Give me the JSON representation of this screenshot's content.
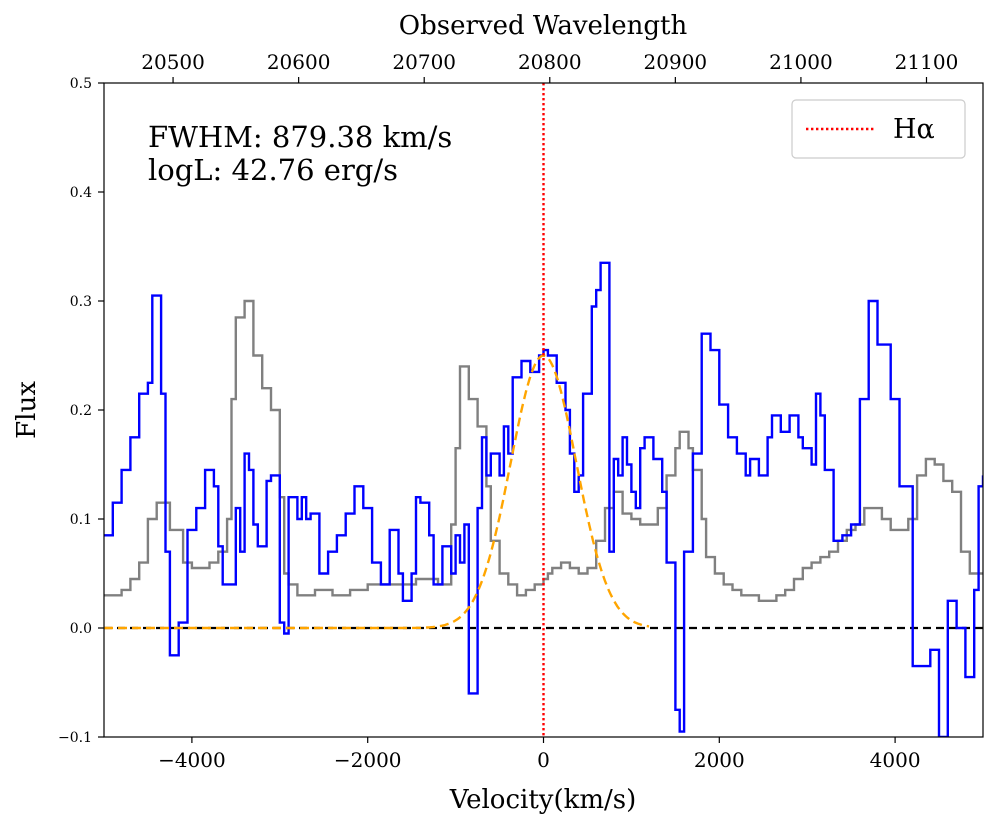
{
  "chart_data": {
    "type": "line",
    "xlabel": "Velocity(km/s)",
    "ylabel": "Flux",
    "top_xlabel": "Observed Wavelength",
    "xlim": [
      -5000,
      5000
    ],
    "ylim": [
      -0.1,
      0.5
    ],
    "top_xlim": [
      20445,
      21145
    ],
    "x_ticks": [
      -4000,
      -2000,
      0,
      2000,
      4000
    ],
    "x_tick_labels": [
      "−4000",
      "−2000",
      "0",
      "2000",
      "4000"
    ],
    "top_ticks": [
      20500,
      20600,
      20700,
      20800,
      20900,
      21000,
      21100
    ],
    "top_tick_labels": [
      "20500",
      "20600",
      "20700",
      "20800",
      "20900",
      "21000",
      "21100"
    ],
    "y_ticks": [
      -0.1,
      0.0,
      0.1,
      0.2,
      0.3,
      0.4,
      0.5
    ],
    "y_tick_labels": [
      "−0.1",
      "0.0",
      "0.1",
      "0.2",
      "0.3",
      "0.4",
      "0.5"
    ],
    "annotations": [
      "FWHM: 879.38 km/s",
      "logL: 42.76 erg/s"
    ],
    "legend": {
      "placement": "top-right",
      "entries": [
        {
          "label": "Hα",
          "style": "red dotted"
        }
      ]
    },
    "colors": {
      "flux": "#0000ff",
      "error": "#808080",
      "fit": "#ffa500",
      "line_marker": "#ff0000",
      "baseline": "#000000"
    },
    "vline": {
      "x": 0,
      "name": "Hα"
    },
    "hline": {
      "y": 0
    },
    "gaussian": {
      "amplitude": 0.25,
      "center": 0,
      "fwhm": 879.38,
      "x_range": [
        -5000,
        1200
      ]
    },
    "series": [
      {
        "name": "flux",
        "style": "steps",
        "points": [
          [
            -5000,
            0.085
          ],
          [
            -4900,
            0.115
          ],
          [
            -4800,
            0.145
          ],
          [
            -4700,
            0.175
          ],
          [
            -4600,
            0.215
          ],
          [
            -4500,
            0.225
          ],
          [
            -4450,
            0.305
          ],
          [
            -4350,
            0.215
          ],
          [
            -4300,
            0.07
          ],
          [
            -4250,
            -0.025
          ],
          [
            -4150,
            0.005
          ],
          [
            -4050,
            0.09
          ],
          [
            -3950,
            0.11
          ],
          [
            -3850,
            0.145
          ],
          [
            -3750,
            0.13
          ],
          [
            -3700,
            0.075
          ],
          [
            -3650,
            0.04
          ],
          [
            -3550,
            0.04
          ],
          [
            -3500,
            0.11
          ],
          [
            -3450,
            0.07
          ],
          [
            -3400,
            0.16
          ],
          [
            -3350,
            0.145
          ],
          [
            -3300,
            0.095
          ],
          [
            -3250,
            0.075
          ],
          [
            -3200,
            0.075
          ],
          [
            -3150,
            0.135
          ],
          [
            -3100,
            0.14
          ],
          [
            -3000,
            0.005
          ],
          [
            -2950,
            -0.005
          ],
          [
            -2900,
            0.12
          ],
          [
            -2800,
            0.1
          ],
          [
            -2750,
            0.12
          ],
          [
            -2700,
            0.1
          ],
          [
            -2650,
            0.105
          ],
          [
            -2550,
            0.05
          ],
          [
            -2450,
            0.07
          ],
          [
            -2350,
            0.085
          ],
          [
            -2250,
            0.105
          ],
          [
            -2150,
            0.13
          ],
          [
            -2050,
            0.11
          ],
          [
            -1950,
            0.06
          ],
          [
            -1850,
            0.04
          ],
          [
            -1750,
            0.09
          ],
          [
            -1650,
            0.05
          ],
          [
            -1600,
            0.025
          ],
          [
            -1500,
            0.05
          ],
          [
            -1450,
            0.12
          ],
          [
            -1400,
            0.115
          ],
          [
            -1300,
            0.085
          ],
          [
            -1250,
            0.04
          ],
          [
            -1150,
            0.075
          ],
          [
            -1050,
            0.05
          ],
          [
            -1000,
            0.085
          ],
          [
            -950,
            0.06
          ],
          [
            -900,
            0.095
          ],
          [
            -850,
            0.005
          ],
          [
            -850,
            -0.06
          ],
          [
            -750,
            0.11
          ],
          [
            -700,
            0.175
          ],
          [
            -650,
            0.14
          ],
          [
            -600,
            0.16
          ],
          [
            -500,
            0.14
          ],
          [
            -450,
            0.185
          ],
          [
            -400,
            0.16
          ],
          [
            -350,
            0.23
          ],
          [
            -250,
            0.245
          ],
          [
            -150,
            0.235
          ],
          [
            -50,
            0.25
          ],
          [
            0,
            0.255
          ],
          [
            50,
            0.25
          ],
          [
            150,
            0.225
          ],
          [
            250,
            0.2
          ],
          [
            300,
            0.16
          ],
          [
            350,
            0.125
          ],
          [
            400,
            0.14
          ],
          [
            450,
            0.215
          ],
          [
            550,
            0.295
          ],
          [
            600,
            0.31
          ],
          [
            650,
            0.335
          ],
          [
            750,
            0.07
          ],
          [
            800,
            0.155
          ],
          [
            850,
            0.14
          ],
          [
            900,
            0.175
          ],
          [
            950,
            0.15
          ],
          [
            1000,
            0.125
          ],
          [
            1050,
            0.11
          ],
          [
            1100,
            0.165
          ],
          [
            1150,
            0.175
          ],
          [
            1250,
            0.155
          ],
          [
            1350,
            0.125
          ],
          [
            1400,
            0.06
          ],
          [
            1500,
            -0.075
          ],
          [
            1550,
            -0.095
          ],
          [
            1600,
            0.07
          ],
          [
            1700,
            0.16
          ],
          [
            1800,
            0.27
          ],
          [
            1900,
            0.255
          ],
          [
            2000,
            0.205
          ],
          [
            2100,
            0.175
          ],
          [
            2200,
            0.16
          ],
          [
            2300,
            0.14
          ],
          [
            2350,
            0.155
          ],
          [
            2450,
            0.14
          ],
          [
            2550,
            0.175
          ],
          [
            2600,
            0.195
          ],
          [
            2700,
            0.18
          ],
          [
            2800,
            0.195
          ],
          [
            2900,
            0.175
          ],
          [
            2950,
            0.165
          ],
          [
            3050,
            0.15
          ],
          [
            3100,
            0.215
          ],
          [
            3150,
            0.195
          ],
          [
            3200,
            0.145
          ],
          [
            3300,
            0.08
          ],
          [
            3400,
            0.085
          ],
          [
            3500,
            0.095
          ],
          [
            3600,
            0.21
          ],
          [
            3700,
            0.3
          ],
          [
            3800,
            0.26
          ],
          [
            3950,
            0.21
          ],
          [
            4050,
            0.13
          ],
          [
            4100,
            0.13
          ],
          [
            4200,
            -0.035
          ],
          [
            4300,
            -0.035
          ],
          [
            4400,
            -0.02
          ],
          [
            4500,
            -0.1
          ],
          [
            4600,
            0.025
          ],
          [
            4700,
            0.0
          ],
          [
            4800,
            -0.045
          ],
          [
            4900,
            0.035
          ],
          [
            4950,
            0.13
          ],
          [
            5000,
            0.14
          ]
        ]
      },
      {
        "name": "error",
        "style": "steps",
        "points": [
          [
            -5000,
            0.03
          ],
          [
            -4900,
            0.03
          ],
          [
            -4800,
            0.035
          ],
          [
            -4700,
            0.045
          ],
          [
            -4600,
            0.06
          ],
          [
            -4500,
            0.1
          ],
          [
            -4400,
            0.115
          ],
          [
            -4300,
            0.115
          ],
          [
            -4250,
            0.09
          ],
          [
            -4200,
            0.09
          ],
          [
            -4100,
            0.06
          ],
          [
            -4000,
            0.055
          ],
          [
            -3900,
            0.055
          ],
          [
            -3800,
            0.06
          ],
          [
            -3700,
            0.07
          ],
          [
            -3600,
            0.1
          ],
          [
            -3550,
            0.21
          ],
          [
            -3500,
            0.285
          ],
          [
            -3400,
            0.3
          ],
          [
            -3300,
            0.25
          ],
          [
            -3200,
            0.22
          ],
          [
            -3100,
            0.2
          ],
          [
            -3000,
            0.12
          ],
          [
            -2950,
            0.05
          ],
          [
            -2900,
            0.04
          ],
          [
            -2800,
            0.03
          ],
          [
            -2600,
            0.035
          ],
          [
            -2400,
            0.03
          ],
          [
            -2200,
            0.035
          ],
          [
            -2000,
            0.04
          ],
          [
            -1800,
            0.04
          ],
          [
            -1600,
            0.04
          ],
          [
            -1450,
            0.045
          ],
          [
            -1300,
            0.045
          ],
          [
            -1200,
            0.04
          ],
          [
            -1100,
            0.04
          ],
          [
            -1050,
            0.095
          ],
          [
            -1000,
            0.165
          ],
          [
            -950,
            0.24
          ],
          [
            -850,
            0.21
          ],
          [
            -750,
            0.185
          ],
          [
            -650,
            0.13
          ],
          [
            -600,
            0.08
          ],
          [
            -500,
            0.05
          ],
          [
            -400,
            0.04
          ],
          [
            -300,
            0.03
          ],
          [
            -200,
            0.035
          ],
          [
            -100,
            0.04
          ],
          [
            0,
            0.045
          ],
          [
            50,
            0.05
          ],
          [
            100,
            0.055
          ],
          [
            200,
            0.06
          ],
          [
            300,
            0.055
          ],
          [
            400,
            0.05
          ],
          [
            500,
            0.055
          ],
          [
            600,
            0.08
          ],
          [
            700,
            0.11
          ],
          [
            800,
            0.125
          ],
          [
            900,
            0.105
          ],
          [
            1000,
            0.1
          ],
          [
            1100,
            0.095
          ],
          [
            1200,
            0.095
          ],
          [
            1300,
            0.11
          ],
          [
            1400,
            0.14
          ],
          [
            1500,
            0.165
          ],
          [
            1550,
            0.18
          ],
          [
            1650,
            0.165
          ],
          [
            1700,
            0.145
          ],
          [
            1800,
            0.1
          ],
          [
            1850,
            0.065
          ],
          [
            1950,
            0.05
          ],
          [
            2050,
            0.04
          ],
          [
            2150,
            0.035
          ],
          [
            2250,
            0.03
          ],
          [
            2350,
            0.03
          ],
          [
            2450,
            0.025
          ],
          [
            2550,
            0.025
          ],
          [
            2650,
            0.03
          ],
          [
            2750,
            0.035
          ],
          [
            2850,
            0.045
          ],
          [
            2950,
            0.055
          ],
          [
            3050,
            0.06
          ],
          [
            3150,
            0.065
          ],
          [
            3250,
            0.07
          ],
          [
            3350,
            0.08
          ],
          [
            3450,
            0.09
          ],
          [
            3550,
            0.095
          ],
          [
            3650,
            0.11
          ],
          [
            3750,
            0.11
          ],
          [
            3850,
            0.1
          ],
          [
            3950,
            0.09
          ],
          [
            4050,
            0.09
          ],
          [
            4150,
            0.1
          ],
          [
            4250,
            0.14
          ],
          [
            4350,
            0.155
          ],
          [
            4450,
            0.15
          ],
          [
            4550,
            0.135
          ],
          [
            4650,
            0.125
          ],
          [
            4750,
            0.07
          ],
          [
            4850,
            0.05
          ],
          [
            4950,
            0.05
          ],
          [
            5000,
            0.05
          ]
        ]
      }
    ]
  }
}
